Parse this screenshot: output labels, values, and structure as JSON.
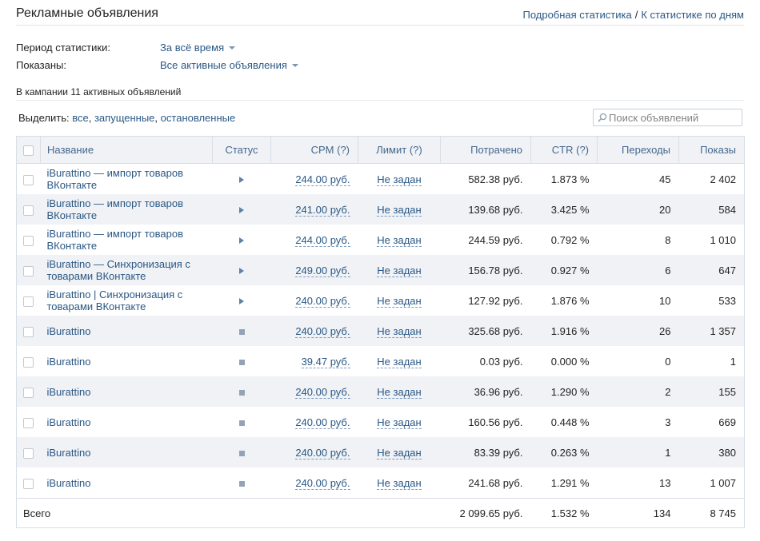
{
  "header": {
    "title": "Рекламные объявления",
    "link_detailed": "Подробная статистика",
    "separator": "/",
    "link_by_days": "К статистике по дням"
  },
  "filters": {
    "period_label": "Период статистики:",
    "period_value": "За всё время",
    "shown_label": "Показаны:",
    "shown_value": "Все активные объявления"
  },
  "campaign_count_text": "В кампании 11 активных объявлений",
  "select": {
    "prefix": "Выделить:",
    "all": "все",
    "running": "запущенные",
    "stopped": "остановленные",
    "comma": ","
  },
  "search": {
    "placeholder": "Поиск объявлений",
    "value": ""
  },
  "table": {
    "columns": {
      "name": "Название",
      "status": "Статус",
      "cpm": "CPM (?)",
      "limit": "Лимит (?)",
      "spent": "Потрачено",
      "ctr": "CTR (?)",
      "clicks": "Переходы",
      "impressions": "Показы"
    },
    "rows": [
      {
        "name": "iBurattino — импорт товаров ВКонтакте",
        "status": "running",
        "cpm": "244.00 руб.",
        "limit": "Не задан",
        "spent": "582.38 руб.",
        "ctr": "1.873 %",
        "clicks": "45",
        "impressions": "2 402"
      },
      {
        "name": "iBurattino — импорт товаров ВКонтакте",
        "status": "running",
        "cpm": "241.00 руб.",
        "limit": "Не задан",
        "spent": "139.68 руб.",
        "ctr": "3.425 %",
        "clicks": "20",
        "impressions": "584"
      },
      {
        "name": "iBurattino — импорт товаров ВКонтакте",
        "status": "running",
        "cpm": "244.00 руб.",
        "limit": "Не задан",
        "spent": "244.59 руб.",
        "ctr": "0.792 %",
        "clicks": "8",
        "impressions": "1 010"
      },
      {
        "name": "iBurattino — Синхронизация с товарами ВКонтакте",
        "status": "running",
        "cpm": "249.00 руб.",
        "limit": "Не задан",
        "spent": "156.78 руб.",
        "ctr": "0.927 %",
        "clicks": "6",
        "impressions": "647"
      },
      {
        "name": "iBurattino | Синхронизация с товарами ВКонтакте",
        "status": "running",
        "cpm": "240.00 руб.",
        "limit": "Не задан",
        "spent": "127.92 руб.",
        "ctr": "1.876 %",
        "clicks": "10",
        "impressions": "533"
      },
      {
        "name": "iBurattino",
        "status": "stopped",
        "cpm": "240.00 руб.",
        "limit": "Не задан",
        "spent": "325.68 руб.",
        "ctr": "1.916 %",
        "clicks": "26",
        "impressions": "1 357"
      },
      {
        "name": "iBurattino",
        "status": "stopped",
        "cpm": "39.47 руб.",
        "limit": "Не задан",
        "spent": "0.03 руб.",
        "ctr": "0.000 %",
        "clicks": "0",
        "impressions": "1"
      },
      {
        "name": "iBurattino",
        "status": "stopped",
        "cpm": "240.00 руб.",
        "limit": "Не задан",
        "spent": "36.96 руб.",
        "ctr": "1.290 %",
        "clicks": "2",
        "impressions": "155"
      },
      {
        "name": "iBurattino",
        "status": "stopped",
        "cpm": "240.00 руб.",
        "limit": "Не задан",
        "spent": "160.56 руб.",
        "ctr": "0.448 %",
        "clicks": "3",
        "impressions": "669"
      },
      {
        "name": "iBurattino",
        "status": "stopped",
        "cpm": "240.00 руб.",
        "limit": "Не задан",
        "spent": "83.39 руб.",
        "ctr": "0.263 %",
        "clicks": "1",
        "impressions": "380"
      },
      {
        "name": "iBurattino",
        "status": "stopped",
        "cpm": "240.00 руб.",
        "limit": "Не задан",
        "spent": "241.68 руб.",
        "ctr": "1.291 %",
        "clicks": "13",
        "impressions": "1 007"
      }
    ],
    "total": {
      "label": "Всего",
      "spent": "2 099.65 руб.",
      "ctr": "1.532 %",
      "clicks": "134",
      "impressions": "8 745"
    }
  },
  "icons": {
    "running": "play-icon",
    "stopped": "stop-icon",
    "search": "search-icon",
    "dropdown": "caret-down-icon"
  },
  "colors": {
    "link": "#2a5885",
    "header_bg": "#f0f2f5",
    "border": "#d7dee6",
    "row_alt": "#f0f2f5"
  }
}
